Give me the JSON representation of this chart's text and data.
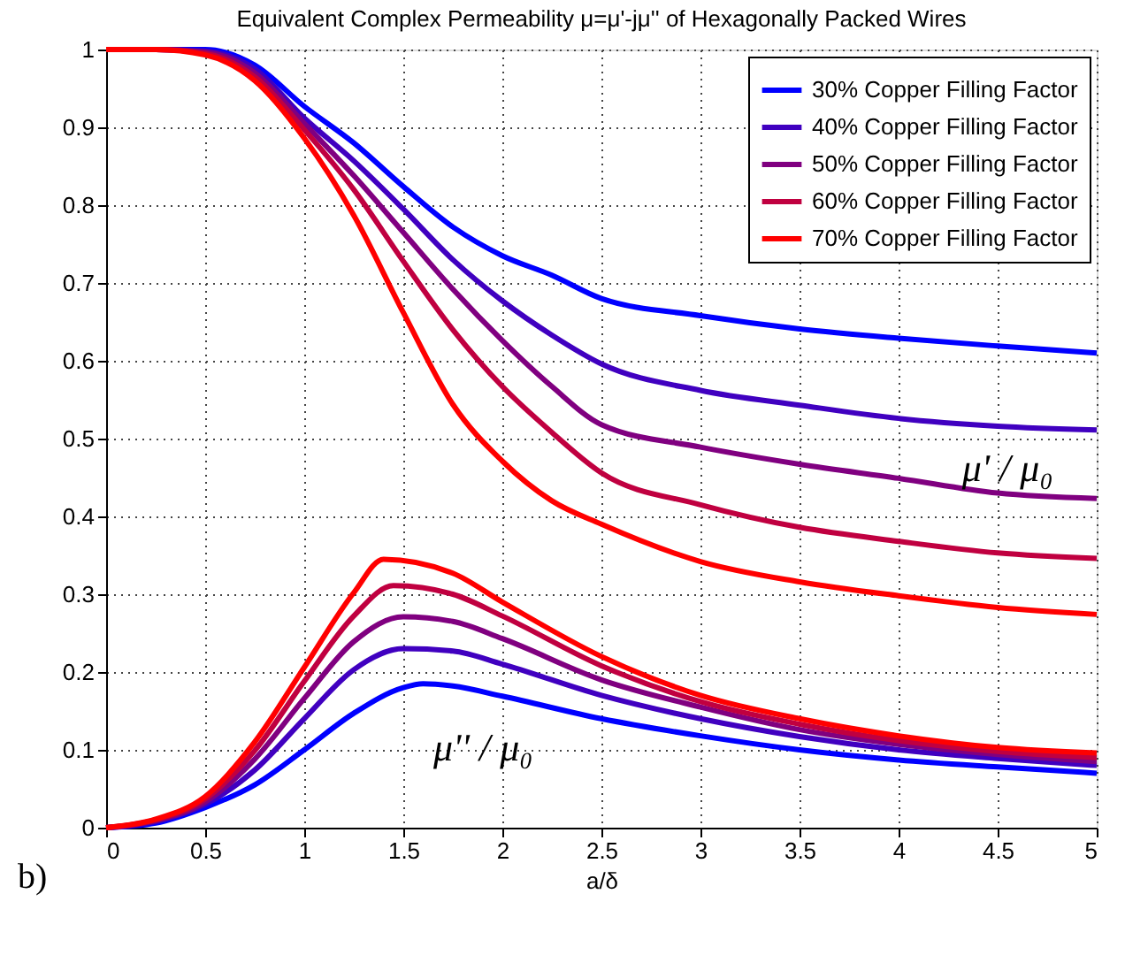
{
  "chart_data": {
    "type": "line",
    "title": "Equivalent Complex Permeability μ=μ'-jμ'' of Hexagonally Packed Wires",
    "xlabel": "a/δ",
    "xlim": [
      0,
      5
    ],
    "xticks": [
      0,
      0.5,
      1,
      1.5,
      2,
      2.5,
      3,
      3.5,
      4,
      4.5,
      5
    ],
    "ylim": [
      0,
      1
    ],
    "yticks": [
      0,
      0.1,
      0.2,
      0.3,
      0.4,
      0.5,
      0.6,
      0.7,
      0.8,
      0.9,
      1
    ],
    "grid": true,
    "legend": "top right",
    "annotations": [
      {
        "text": "μ' / μ₀",
        "x": 4.55,
        "y": 0.43
      },
      "μ'' / μ₀",
      "b)"
    ],
    "series": [
      {
        "name": "30% Copper Filling Factor",
        "color": "#0000ff",
        "x": [
          0,
          0.25,
          0.5,
          0.75,
          1,
          1.25,
          1.5,
          1.75,
          2,
          2.25,
          2.5,
          3,
          3.5,
          4,
          4.5,
          5
        ],
        "values": [
          1,
          1,
          1,
          0.98,
          0.927,
          0.88,
          0.824,
          0.772,
          0.735,
          0.71,
          0.68,
          0.658,
          0.641,
          0.629,
          0.619,
          0.61
        ]
      },
      {
        "name": "40% Copper Filling Factor",
        "color": "#4000c0",
        "x": [
          0,
          0.25,
          0.5,
          0.75,
          1,
          1.25,
          1.5,
          1.75,
          2,
          2.25,
          2.5,
          3,
          3.5,
          4,
          4.5,
          5
        ],
        "values": [
          1,
          1,
          0.998,
          0.975,
          0.912,
          0.857,
          0.795,
          0.73,
          0.677,
          0.633,
          0.596,
          0.562,
          0.543,
          0.526,
          0.516,
          0.511
        ]
      },
      {
        "name": "50% Copper Filling Factor",
        "color": "#800080",
        "x": [
          0,
          0.25,
          0.5,
          0.75,
          1,
          1.25,
          1.5,
          1.75,
          2,
          2.25,
          2.5,
          3,
          3.5,
          4,
          4.5,
          5
        ],
        "values": [
          1,
          1,
          0.997,
          0.97,
          0.905,
          0.838,
          0.765,
          0.692,
          0.626,
          0.567,
          0.518,
          0.489,
          0.467,
          0.449,
          0.43,
          0.423
        ]
      },
      {
        "name": "60% Copper Filling Factor",
        "color": "#c00040",
        "x": [
          0,
          0.25,
          0.5,
          0.75,
          1,
          1.25,
          1.5,
          1.75,
          2,
          2.25,
          2.5,
          3,
          3.5,
          4,
          4.5,
          5
        ],
        "values": [
          1,
          1,
          0.995,
          0.965,
          0.897,
          0.82,
          0.728,
          0.64,
          0.567,
          0.508,
          0.456,
          0.415,
          0.386,
          0.368,
          0.353,
          0.346
        ]
      },
      {
        "name": "70% Copper Filling Factor",
        "color": "#ff0000",
        "x": [
          0,
          0.25,
          0.5,
          0.75,
          1,
          1.25,
          1.5,
          1.75,
          2,
          2.25,
          2.5,
          3,
          3.5,
          4,
          4.5,
          5
        ],
        "values": [
          1,
          1,
          0.993,
          0.96,
          0.886,
          0.787,
          0.662,
          0.544,
          0.471,
          0.42,
          0.39,
          0.342,
          0.316,
          0.298,
          0.283,
          0.274
        ]
      },
      {
        "color": "#0000ff",
        "x": [
          0,
          0.25,
          0.5,
          0.75,
          1,
          1.25,
          1.5,
          1.6,
          1.75,
          2,
          2.5,
          3,
          3.5,
          4,
          4.5,
          5
        ],
        "values": [
          0,
          0.006,
          0.026,
          0.055,
          0.1,
          0.147,
          0.18,
          0.185,
          0.182,
          0.169,
          0.14,
          0.118,
          0.1,
          0.087,
          0.078,
          0.07
        ]
      },
      {
        "color": "#4000c0",
        "x": [
          0,
          0.25,
          0.5,
          0.75,
          1,
          1.25,
          1.5,
          1.75,
          2,
          2.5,
          3,
          3.5,
          4,
          4.5,
          5
        ],
        "values": [
          0,
          0.008,
          0.03,
          0.074,
          0.14,
          0.203,
          0.23,
          0.227,
          0.21,
          0.17,
          0.14,
          0.117,
          0.1,
          0.089,
          0.08
        ]
      },
      {
        "color": "#800080",
        "x": [
          0,
          0.25,
          0.5,
          0.75,
          1,
          1.25,
          1.5,
          1.75,
          2,
          2.5,
          3,
          3.5,
          4,
          4.5,
          5
        ],
        "values": [
          0,
          0.009,
          0.033,
          0.088,
          0.166,
          0.239,
          0.271,
          0.265,
          0.243,
          0.19,
          0.155,
          0.126,
          0.107,
          0.094,
          0.085
        ]
      },
      {
        "color": "#c00040",
        "x": [
          0,
          0.25,
          0.5,
          0.75,
          1,
          1.25,
          1.45,
          1.75,
          2,
          2.5,
          3,
          3.5,
          4,
          4.5,
          5
        ],
        "values": [
          0,
          0.01,
          0.037,
          0.099,
          0.188,
          0.272,
          0.311,
          0.3,
          0.272,
          0.208,
          0.162,
          0.133,
          0.112,
          0.098,
          0.09
        ]
      },
      {
        "color": "#ff0000",
        "x": [
          0,
          0.25,
          0.5,
          0.75,
          1,
          1.25,
          1.4,
          1.75,
          2,
          2.5,
          3,
          3.5,
          4,
          4.5,
          5
        ],
        "values": [
          0,
          0.011,
          0.04,
          0.11,
          0.206,
          0.302,
          0.345,
          0.327,
          0.29,
          0.22,
          0.17,
          0.14,
          0.118,
          0.103,
          0.096
        ]
      }
    ]
  }
}
